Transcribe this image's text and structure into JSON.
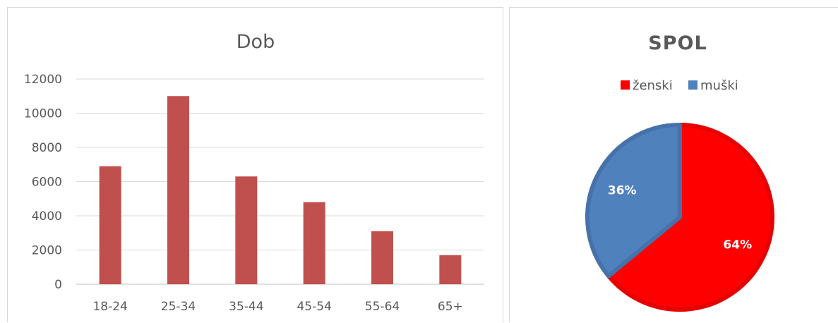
{
  "chart_data": [
    {
      "type": "bar",
      "title": "Dob",
      "categories": [
        "18-24",
        "25-34",
        "35-44",
        "45-54",
        "55-64",
        "65+"
      ],
      "values": [
        6900,
        11000,
        6300,
        4800,
        3100,
        1700
      ],
      "ylim": [
        0,
        12000
      ],
      "yticks": [
        "0",
        "2000",
        "4000",
        "6000",
        "8000",
        "10000",
        "12000"
      ],
      "grid": true,
      "color": "#c0504d"
    },
    {
      "type": "pie",
      "title": "SPOL",
      "legend_position": "top",
      "slices": [
        {
          "name": "ženski",
          "value": 64,
          "label": "64%",
          "color": "#ff0000"
        },
        {
          "name": "muški",
          "value": 36,
          "label": "36%",
          "color": "#4f81bd"
        }
      ]
    }
  ]
}
